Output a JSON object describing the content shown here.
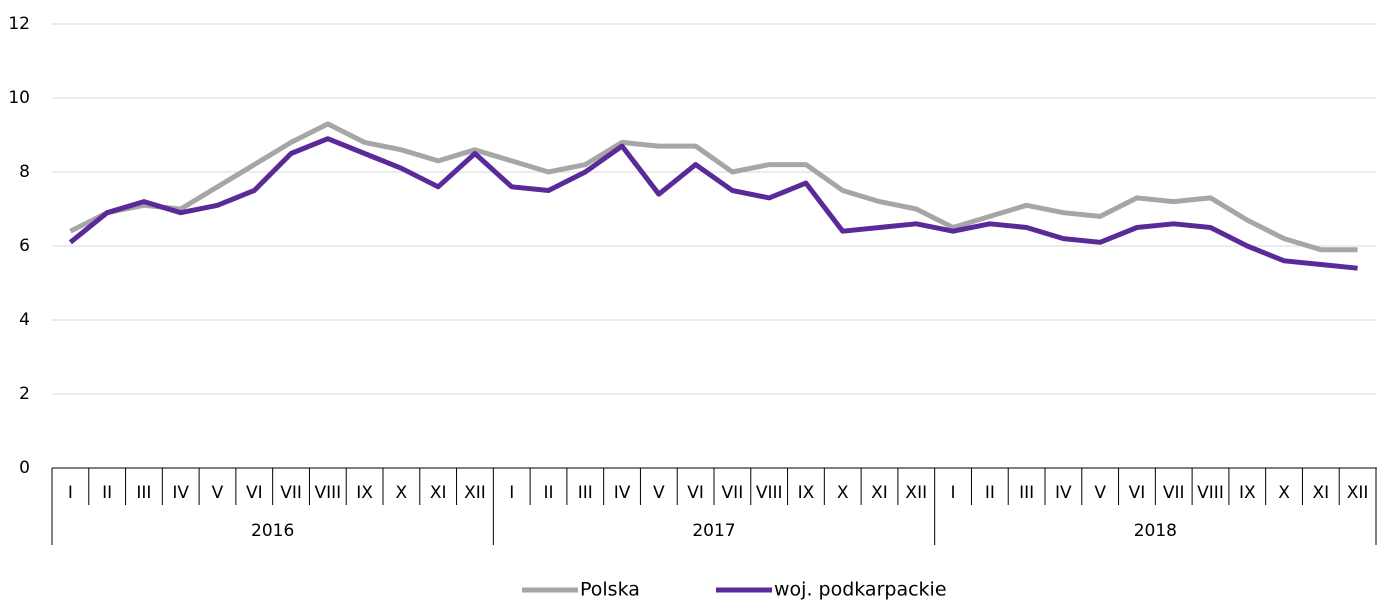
{
  "chart_data": {
    "type": "line",
    "categories": [
      "I",
      "II",
      "III",
      "IV",
      "V",
      "VI",
      "VII",
      "VIII",
      "IX",
      "X",
      "XI",
      "XII",
      "I",
      "II",
      "III",
      "IV",
      "V",
      "VI",
      "VII",
      "VIII",
      "IX",
      "X",
      "XI",
      "XII",
      "I",
      "II",
      "III",
      "IV",
      "V",
      "VI",
      "VII",
      "VIII",
      "IX",
      "X",
      "XI",
      "XII"
    ],
    "category_groups": [
      "2016",
      "2017",
      "2018"
    ],
    "series": [
      {
        "name": "Polska",
        "color": "#a6a6a6",
        "values": [
          6.4,
          6.9,
          7.1,
          7.0,
          7.6,
          8.2,
          8.8,
          9.3,
          8.8,
          8.6,
          8.3,
          8.6,
          8.3,
          8.0,
          8.2,
          8.8,
          8.7,
          8.7,
          8.0,
          8.2,
          8.2,
          7.5,
          7.2,
          7.0,
          6.5,
          6.8,
          7.1,
          6.9,
          6.8,
          7.3,
          7.2,
          7.3,
          6.7,
          6.2,
          5.9,
          5.9
        ]
      },
      {
        "name": "woj. podkarpackie",
        "color": "#5a2a99",
        "values": [
          6.1,
          6.9,
          7.2,
          6.9,
          7.1,
          7.5,
          8.5,
          8.9,
          8.5,
          8.1,
          7.6,
          8.5,
          7.6,
          7.5,
          8.0,
          8.7,
          7.4,
          8.2,
          7.5,
          7.3,
          7.7,
          6.4,
          6.5,
          6.6,
          6.4,
          6.6,
          6.5,
          6.2,
          6.1,
          6.5,
          6.6,
          6.5,
          6.0,
          5.6,
          5.5,
          5.4
        ]
      }
    ],
    "ylim": [
      0,
      12
    ],
    "yticks": [
      0,
      2,
      4,
      6,
      8,
      10,
      12
    ],
    "grid": true,
    "legend": "bottom"
  }
}
